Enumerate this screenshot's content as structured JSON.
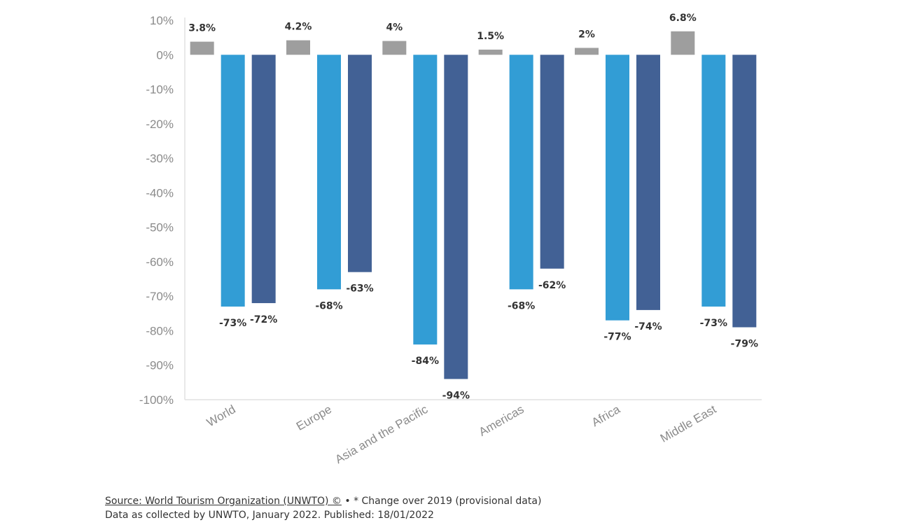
{
  "chart_data": {
    "type": "bar",
    "title": "",
    "xlabel": "",
    "ylabel": "",
    "categories": [
      "World",
      "Europe",
      "Asia and the Pacific",
      "Americas",
      "Africa",
      "Middle East"
    ],
    "series": [
      {
        "values": [
          3.8,
          4.2,
          4,
          1.5,
          2,
          6.8
        ],
        "labels": [
          "3.8%",
          "4.2%",
          "4%",
          "1.5%",
          "2%",
          "6.8%"
        ],
        "color": "#9e9e9e"
      },
      {
        "values": [
          -73,
          -68,
          -84,
          -68,
          -77,
          -73
        ],
        "labels": [
          "-73%",
          "-68%",
          "-84%",
          "-68%",
          "-77%",
          "-73%"
        ],
        "color": "#329dd5"
      },
      {
        "values": [
          -72,
          -63,
          -94,
          -62,
          -74,
          -79
        ],
        "labels": [
          "-72%",
          "-63%",
          "-94%",
          "-62%",
          "-74%",
          "-79%"
        ],
        "color": "#426195"
      }
    ],
    "ylim": [
      -100,
      10
    ],
    "yticks": [
      10,
      0,
      -10,
      -20,
      -30,
      -40,
      -50,
      -60,
      -70,
      -80,
      -90,
      -100
    ],
    "ytick_labels": [
      "10%",
      "0%",
      "-10%",
      "-20%",
      "-30%",
      "-40%",
      "-50%",
      "-60%",
      "-70%",
      "-80%",
      "-90%",
      "-100%"
    ],
    "grid": false,
    "legend": "none"
  },
  "footer": {
    "source_link": "Source: World Tourism Organization (UNWTO) ©",
    "source_note": " • * Change over 2019 (provisional data)",
    "published": "Data as collected by UNWTO, January 2022. Published: 18/01/2022"
  }
}
